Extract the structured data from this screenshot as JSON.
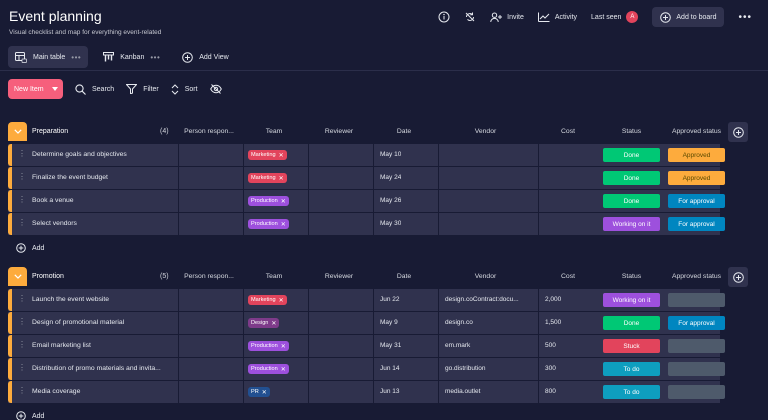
{
  "board": {
    "title": "Event planning",
    "subtitle": "Visual checklist and map for everything event-related"
  },
  "top_actions": {
    "info_icon": "info-circle-icon",
    "activity_icon": "refresh-icon",
    "invite_label": "Invite",
    "activity_label": "Activity",
    "last_seen_label": "Last seen",
    "avatar_initial": "A",
    "add_to_board_label": "Add to board"
  },
  "views": {
    "tabs": [
      {
        "label": "Main table",
        "icon": "table-icon",
        "active": true
      },
      {
        "label": "Kanban",
        "icon": "kanban-icon",
        "active": false
      }
    ],
    "add_view_label": "Add View"
  },
  "actions": {
    "new_item_label": "New Item",
    "search_label": "Search",
    "filter_label": "Filter",
    "sort_label": "Sort"
  },
  "columns": [
    "Person respon...",
    "Team",
    "Reviewer",
    "Date",
    "Vendor",
    "Cost",
    "Status",
    "Approved status"
  ],
  "colors": {
    "background": "#181b34",
    "row": "#30324e",
    "group_accent": "#fdab3d",
    "marketing": "#e2445c",
    "production": "#9d50dd",
    "design": "#7e3b8a",
    "pr": "#225091",
    "done": "#00c875",
    "approved": "#fdab3d",
    "for_approval": "#0086c0",
    "working_on_it": "#9d50dd",
    "stuck": "#e2445c",
    "to_do": "#0e9ebf",
    "empty": "#4e5a6b"
  },
  "groups": [
    {
      "name": "Preparation",
      "count": "(4)",
      "add_label": "Add",
      "items": [
        {
          "name": "Determine goals and objectives",
          "team": "Marketing",
          "team_color": "#e2445c",
          "date": "May 10",
          "vendor": "",
          "cost": "",
          "status": "Done",
          "status_color": "#00c875",
          "approved": "Approved",
          "approved_color": "#fdab3d"
        },
        {
          "name": "Finalize the event budget",
          "team": "Marketing",
          "team_color": "#e2445c",
          "date": "May 24",
          "vendor": "",
          "cost": "",
          "status": "Done",
          "status_color": "#00c875",
          "approved": "Approved",
          "approved_color": "#fdab3d"
        },
        {
          "name": "Book a venue",
          "team": "Production",
          "team_color": "#9d50dd",
          "date": "May 26",
          "vendor": "",
          "cost": "",
          "status": "Done",
          "status_color": "#00c875",
          "approved": "For approval",
          "approved_color": "#0086c0"
        },
        {
          "name": "Select vendors",
          "team": "Production",
          "team_color": "#9d50dd",
          "date": "May 30",
          "vendor": "",
          "cost": "",
          "status": "Working on it",
          "status_color": "#9d50dd",
          "approved": "For approval",
          "approved_color": "#0086c0"
        }
      ]
    },
    {
      "name": "Promotion",
      "count": "(5)",
      "add_label": "Add",
      "items": [
        {
          "name": "Launch the event website",
          "team": "Marketing",
          "team_color": "#e2445c",
          "date": "Jun 22",
          "vendor": "design.coContract:docu...",
          "cost": "2,000",
          "status": "Working on it",
          "status_color": "#9d50dd",
          "approved": "",
          "approved_color": "#4e5a6b"
        },
        {
          "name": "Design of promotional material",
          "team": "Design",
          "team_color": "#7e3b8a",
          "date": "May 9",
          "vendor": "design.co",
          "cost": "1,500",
          "status": "Done",
          "status_color": "#00c875",
          "approved": "For approval",
          "approved_color": "#0086c0"
        },
        {
          "name": "Email marketing list",
          "team": "Production",
          "team_color": "#9d50dd",
          "date": "May 31",
          "vendor": "em.mark",
          "cost": "500",
          "status": "Stuck",
          "status_color": "#e2445c",
          "approved": "",
          "approved_color": "#4e5a6b"
        },
        {
          "name": "Distribution of promo materials and invita...",
          "team": "Production",
          "team_color": "#9d50dd",
          "date": "Jun 14",
          "vendor": "go.distribution",
          "cost": "300",
          "status": "To do",
          "status_color": "#0e9ebf",
          "approved": "",
          "approved_color": "#4e5a6b"
        },
        {
          "name": "Media coverage",
          "team": "PR",
          "team_color": "#225091",
          "date": "Jun 13",
          "vendor": "media.outlet",
          "cost": "800",
          "status": "To do",
          "status_color": "#0e9ebf",
          "approved": "",
          "approved_color": "#4e5a6b"
        }
      ]
    }
  ]
}
